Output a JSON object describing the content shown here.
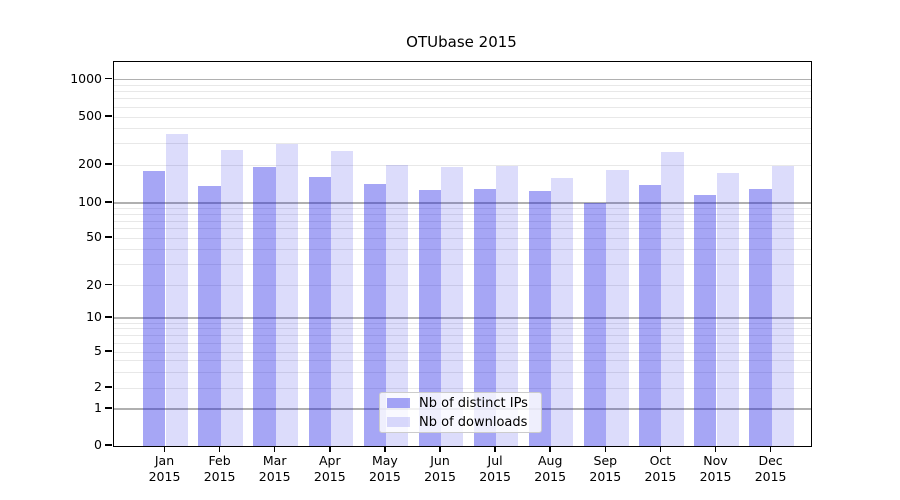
{
  "window": {
    "background_color": "#ffffff"
  },
  "chart_data": {
    "type": "bar",
    "title": "OTUbase 2015",
    "categories": [
      "Jan 2015",
      "Feb 2015",
      "Mar 2015",
      "Apr 2015",
      "May 2015",
      "Jun 2015",
      "Jul 2015",
      "Aug 2015",
      "Sep 2015",
      "Oct 2015",
      "Nov 2015",
      "Dec 2015"
    ],
    "series": [
      {
        "name": "Nb of distinct IPs",
        "color": "rgba(20,20,230,0.38)",
        "values": [
          180,
          137,
          193,
          161,
          142,
          126,
          130,
          124,
          100,
          138,
          115,
          129
        ]
      },
      {
        "name": "Nb of downloads",
        "color": "rgba(20,20,230,0.15)",
        "values": [
          363,
          268,
          298,
          263,
          199,
          192,
          196,
          159,
          183,
          256,
          174,
          198
        ]
      }
    ],
    "xlabel": "",
    "ylabel": "",
    "yscale": "symlog",
    "yticks": [
      0,
      1,
      2,
      5,
      10,
      20,
      50,
      100,
      200,
      500,
      1000
    ],
    "minor_grid_values": [
      2,
      3,
      4,
      5,
      6,
      7,
      8,
      9,
      20,
      30,
      40,
      50,
      60,
      70,
      80,
      90,
      200,
      300,
      400,
      500,
      600,
      700,
      800,
      900
    ],
    "major_grid_values": [
      1,
      10,
      100,
      1000
    ],
    "ylim": [
      0,
      1400
    ],
    "grid": true,
    "legend_position": "lower-center"
  },
  "colors": {
    "major_grid": "#b0b0b0",
    "minor_grid": "#e8e8e8",
    "axis_spine": "#000000",
    "bar_distinct_ips_on_white": "#a9a9f5",
    "bar_downloads_on_white": "#dcdcfa"
  }
}
